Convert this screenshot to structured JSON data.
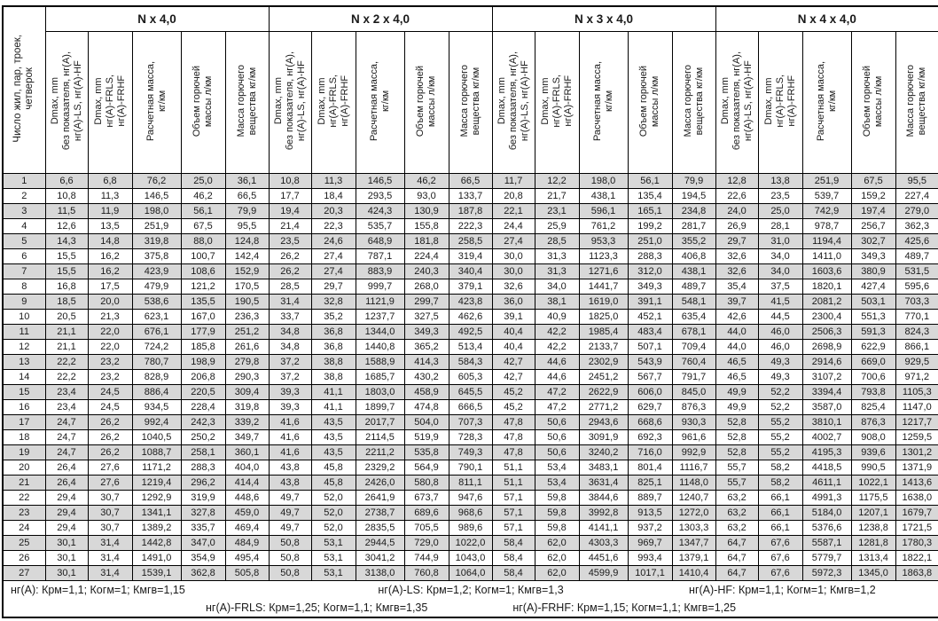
{
  "colors": {
    "row_stripe": "#d8d8d8",
    "border": "#000000"
  },
  "table": {
    "row_header_label": "Число жил, пар, троек,\nчетверок",
    "groups": [
      {
        "title": "N x 4,0"
      },
      {
        "title": "N x 2 x 4,0"
      },
      {
        "title": "N x 3 x 4,0"
      },
      {
        "title": "N x 4 x 4,0"
      }
    ],
    "column_headers": [
      "Dmax, mm\nбез показателя, нг(А),\nнг(А)-LS, нг(А)-HF",
      "Dmax, mm\nнг(А)-FRLS,\nнг(А)-FRHF",
      "Расчетная масса,\nкг/км",
      "Объем горючей\nмассы л/км",
      "Масса горючего\nвещества кг/км"
    ],
    "rows": [
      {
        "n": "1",
        "cells": [
          "6,6",
          "6,8",
          "76,2",
          "25,0",
          "36,1",
          "10,8",
          "11,3",
          "146,5",
          "46,2",
          "66,5",
          "11,7",
          "12,2",
          "198,0",
          "56,1",
          "79,9",
          "12,8",
          "13,8",
          "251,9",
          "67,5",
          "95,5"
        ]
      },
      {
        "n": "2",
        "cells": [
          "10,8",
          "11,3",
          "146,5",
          "46,2",
          "66,5",
          "17,7",
          "18,4",
          "293,5",
          "93,0",
          "133,7",
          "20,8",
          "21,7",
          "438,1",
          "135,4",
          "194,5",
          "22,6",
          "23,5",
          "539,7",
          "159,2",
          "227,4"
        ]
      },
      {
        "n": "3",
        "cells": [
          "11,5",
          "11,9",
          "198,0",
          "56,1",
          "79,9",
          "19,4",
          "20,3",
          "424,3",
          "130,9",
          "187,8",
          "22,1",
          "23,1",
          "596,1",
          "165,1",
          "234,8",
          "24,0",
          "25,0",
          "742,9",
          "197,4",
          "279,0"
        ]
      },
      {
        "n": "4",
        "cells": [
          "12,6",
          "13,5",
          "251,9",
          "67,5",
          "95,5",
          "21,4",
          "22,3",
          "535,7",
          "155,8",
          "222,3",
          "24,4",
          "25,9",
          "761,2",
          "199,2",
          "281,7",
          "26,9",
          "28,1",
          "978,7",
          "256,7",
          "362,3"
        ]
      },
      {
        "n": "5",
        "cells": [
          "14,3",
          "14,8",
          "319,8",
          "88,0",
          "124,8",
          "23,5",
          "24,6",
          "648,9",
          "181,8",
          "258,5",
          "27,4",
          "28,5",
          "953,3",
          "251,0",
          "355,2",
          "29,7",
          "31,0",
          "1194,4",
          "302,7",
          "425,6"
        ]
      },
      {
        "n": "6",
        "cells": [
          "15,5",
          "16,2",
          "375,8",
          "100,7",
          "142,4",
          "26,2",
          "27,4",
          "787,1",
          "224,4",
          "319,4",
          "30,0",
          "31,3",
          "1123,3",
          "288,3",
          "406,8",
          "32,6",
          "34,0",
          "1411,0",
          "349,3",
          "489,7"
        ]
      },
      {
        "n": "7",
        "cells": [
          "15,5",
          "16,2",
          "423,9",
          "108,6",
          "152,9",
          "26,2",
          "27,4",
          "883,9",
          "240,3",
          "340,4",
          "30,0",
          "31,3",
          "1271,6",
          "312,0",
          "438,1",
          "32,6",
          "34,0",
          "1603,6",
          "380,9",
          "531,5"
        ]
      },
      {
        "n": "8",
        "cells": [
          "16,8",
          "17,5",
          "479,9",
          "121,2",
          "170,5",
          "28,5",
          "29,7",
          "999,7",
          "268,0",
          "379,1",
          "32,6",
          "34,0",
          "1441,7",
          "349,3",
          "489,7",
          "35,4",
          "37,5",
          "1820,1",
          "427,4",
          "595,6"
        ]
      },
      {
        "n": "9",
        "cells": [
          "18,5",
          "20,0",
          "538,6",
          "135,5",
          "190,5",
          "31,4",
          "32,8",
          "1121,9",
          "299,7",
          "423,8",
          "36,0",
          "38,1",
          "1619,0",
          "391,1",
          "548,1",
          "39,7",
          "41,5",
          "2081,2",
          "503,1",
          "703,3"
        ]
      },
      {
        "n": "10",
        "cells": [
          "20,5",
          "21,3",
          "623,1",
          "167,0",
          "236,3",
          "33,7",
          "35,2",
          "1237,7",
          "327,5",
          "462,6",
          "39,1",
          "40,9",
          "1825,0",
          "452,1",
          "635,4",
          "42,6",
          "44,5",
          "2300,4",
          "551,3",
          "770,1"
        ]
      },
      {
        "n": "11",
        "cells": [
          "21,1",
          "22,0",
          "676,1",
          "177,9",
          "251,2",
          "34,8",
          "36,8",
          "1344,0",
          "349,3",
          "492,5",
          "40,4",
          "42,2",
          "1985,4",
          "483,4",
          "678,1",
          "44,0",
          "46,0",
          "2506,3",
          "591,3",
          "824,3"
        ]
      },
      {
        "n": "12",
        "cells": [
          "21,1",
          "22,0",
          "724,2",
          "185,8",
          "261,6",
          "34,8",
          "36,8",
          "1440,8",
          "365,2",
          "513,4",
          "40,4",
          "42,2",
          "2133,7",
          "507,1",
          "709,4",
          "44,0",
          "46,0",
          "2698,9",
          "622,9",
          "866,1"
        ]
      },
      {
        "n": "13",
        "cells": [
          "22,2",
          "23,2",
          "780,7",
          "198,9",
          "279,8",
          "37,2",
          "38,8",
          "1588,9",
          "414,3",
          "584,3",
          "42,7",
          "44,6",
          "2302,9",
          "543,9",
          "760,4",
          "46,5",
          "49,3",
          "2914,6",
          "669,0",
          "929,5"
        ]
      },
      {
        "n": "14",
        "cells": [
          "22,2",
          "23,2",
          "828,9",
          "206,8",
          "290,3",
          "37,2",
          "38,8",
          "1685,7",
          "430,2",
          "605,3",
          "42,7",
          "44,6",
          "2451,2",
          "567,7",
          "791,7",
          "46,5",
          "49,3",
          "3107,2",
          "700,6",
          "971,2"
        ]
      },
      {
        "n": "15",
        "cells": [
          "23,4",
          "24,5",
          "886,4",
          "220,5",
          "309,4",
          "39,3",
          "41,1",
          "1803,0",
          "458,9",
          "645,5",
          "45,2",
          "47,2",
          "2622,9",
          "606,0",
          "845,0",
          "49,9",
          "52,2",
          "3394,4",
          "793,8",
          "1105,3"
        ]
      },
      {
        "n": "16",
        "cells": [
          "23,4",
          "24,5",
          "934,5",
          "228,4",
          "319,8",
          "39,3",
          "41,1",
          "1899,7",
          "474,8",
          "666,5",
          "45,2",
          "47,2",
          "2771,2",
          "629,7",
          "876,3",
          "49,9",
          "52,2",
          "3587,0",
          "825,4",
          "1147,0"
        ]
      },
      {
        "n": "17",
        "cells": [
          "24,7",
          "26,2",
          "992,4",
          "242,3",
          "339,2",
          "41,6",
          "43,5",
          "2017,7",
          "504,0",
          "707,3",
          "47,8",
          "50,6",
          "2943,6",
          "668,6",
          "930,3",
          "52,8",
          "55,2",
          "3810,1",
          "876,3",
          "1217,7"
        ]
      },
      {
        "n": "18",
        "cells": [
          "24,7",
          "26,2",
          "1040,5",
          "250,2",
          "349,7",
          "41,6",
          "43,5",
          "2114,5",
          "519,9",
          "728,3",
          "47,8",
          "50,6",
          "3091,9",
          "692,3",
          "961,6",
          "52,8",
          "55,2",
          "4002,7",
          "908,0",
          "1259,5"
        ]
      },
      {
        "n": "19",
        "cells": [
          "24,7",
          "26,2",
          "1088,7",
          "258,1",
          "360,1",
          "41,6",
          "43,5",
          "2211,2",
          "535,8",
          "749,3",
          "47,8",
          "50,6",
          "3240,2",
          "716,0",
          "992,9",
          "52,8",
          "55,2",
          "4195,3",
          "939,6",
          "1301,2"
        ]
      },
      {
        "n": "20",
        "cells": [
          "26,4",
          "27,6",
          "1171,2",
          "288,3",
          "404,0",
          "43,8",
          "45,8",
          "2329,2",
          "564,9",
          "790,1",
          "51,1",
          "53,4",
          "3483,1",
          "801,4",
          "1116,7",
          "55,7",
          "58,2",
          "4418,5",
          "990,5",
          "1371,9"
        ]
      },
      {
        "n": "21",
        "cells": [
          "26,4",
          "27,6",
          "1219,4",
          "296,2",
          "414,4",
          "43,8",
          "45,8",
          "2426,0",
          "580,8",
          "811,1",
          "51,1",
          "53,4",
          "3631,4",
          "825,1",
          "1148,0",
          "55,7",
          "58,2",
          "4611,1",
          "1022,1",
          "1413,6"
        ]
      },
      {
        "n": "22",
        "cells": [
          "29,4",
          "30,7",
          "1292,9",
          "319,9",
          "448,6",
          "49,7",
          "52,0",
          "2641,9",
          "673,7",
          "947,6",
          "57,1",
          "59,8",
          "3844,6",
          "889,7",
          "1240,7",
          "63,2",
          "66,1",
          "4991,3",
          "1175,5",
          "1638,0"
        ]
      },
      {
        "n": "23",
        "cells": [
          "29,4",
          "30,7",
          "1341,1",
          "327,8",
          "459,0",
          "49,7",
          "52,0",
          "2738,7",
          "689,6",
          "968,6",
          "57,1",
          "59,8",
          "3992,8",
          "913,5",
          "1272,0",
          "63,2",
          "66,1",
          "5184,0",
          "1207,1",
          "1679,7"
        ]
      },
      {
        "n": "24",
        "cells": [
          "29,4",
          "30,7",
          "1389,2",
          "335,7",
          "469,4",
          "49,7",
          "52,0",
          "2835,5",
          "705,5",
          "989,6",
          "57,1",
          "59,8",
          "4141,1",
          "937,2",
          "1303,3",
          "63,2",
          "66,1",
          "5376,6",
          "1238,8",
          "1721,5"
        ]
      },
      {
        "n": "25",
        "cells": [
          "30,1",
          "31,4",
          "1442,8",
          "347,0",
          "484,9",
          "50,8",
          "53,1",
          "2944,5",
          "729,0",
          "1022,0",
          "58,4",
          "62,0",
          "4303,3",
          "969,7",
          "1347,7",
          "64,7",
          "67,6",
          "5587,1",
          "1281,8",
          "1780,3"
        ]
      },
      {
        "n": "26",
        "cells": [
          "30,1",
          "31,4",
          "1491,0",
          "354,9",
          "495,4",
          "50,8",
          "53,1",
          "3041,2",
          "744,9",
          "1043,0",
          "58,4",
          "62,0",
          "4451,6",
          "993,4",
          "1379,1",
          "64,7",
          "67,6",
          "5779,7",
          "1313,4",
          "1822,1"
        ]
      },
      {
        "n": "27",
        "cells": [
          "30,1",
          "31,4",
          "1539,1",
          "362,8",
          "505,8",
          "50,8",
          "53,1",
          "3138,0",
          "760,8",
          "1064,0",
          "58,4",
          "62,0",
          "4599,9",
          "1017,1",
          "1410,4",
          "64,7",
          "67,6",
          "5972,3",
          "1345,0",
          "1863,8"
        ]
      }
    ]
  },
  "footer": {
    "line1": [
      "нг(А): Крм=1,1;  Когм=1;  Кмгв=1,15",
      "нг(А)-LS: Крм=1,2;  Когм=1;  Кмгв=1,3",
      "нг(А)-HF: Крм=1,1;  Когм=1;  Кмгв=1,2"
    ],
    "line2": [
      "нг(А)-FRLS: Крм=1,25;  Когм=1,1;  Кмгв=1,35",
      "нг(А)-FRHF: Крм=1,15;  Когм=1,1;  Кмгв=1,25"
    ]
  }
}
